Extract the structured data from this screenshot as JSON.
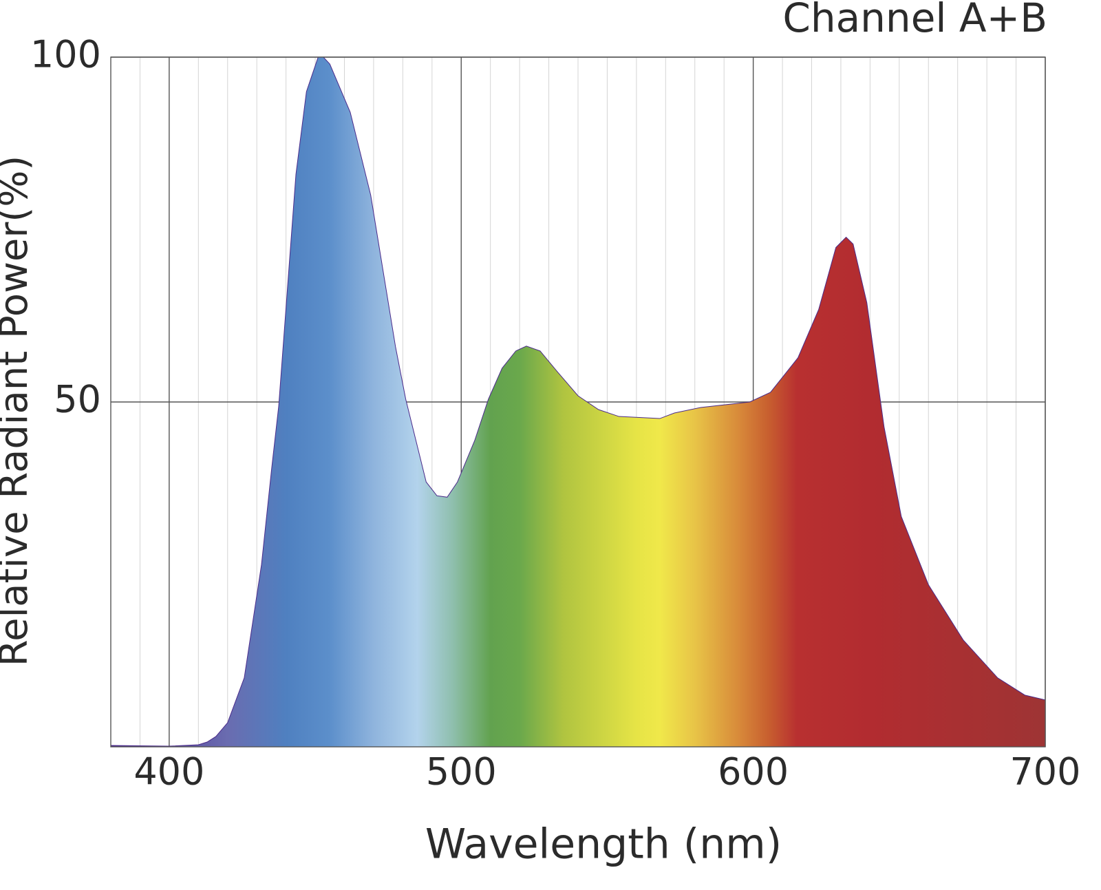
{
  "chart_data": {
    "type": "area",
    "title": "Channel A+B",
    "x_label": "Wavelength (nm)",
    "y_label": "Relative Radiant Power(%)",
    "x": [
      380,
      400,
      410,
      413,
      416,
      420,
      425.7,
      431.6,
      435.1,
      437.5,
      443.4,
      447,
      451,
      452.8,
      455,
      462,
      469,
      477.5,
      481,
      488,
      491.7,
      495.2,
      498.7,
      504.6,
      509.3,
      514,
      518.7,
      522.3,
      527,
      532.9,
      540,
      547,
      554,
      568,
      573,
      582,
      598.8,
      605.9,
      615.3,
      622.4,
      628.3,
      631.8,
      634.2,
      638.9,
      644.8,
      650.7,
      660,
      671.9,
      683.7,
      693,
      700
    ],
    "values": [
      0.2,
      0.1,
      0.3,
      0.7,
      1.5,
      3.5,
      10,
      26.4,
      40.4,
      49.4,
      83,
      95,
      100,
      100,
      99,
      92,
      80,
      58,
      50.4,
      38.4,
      36.4,
      36.2,
      38.4,
      44.4,
      50.4,
      54.9,
      57.4,
      58.1,
      57.4,
      54.4,
      50.9,
      48.9,
      47.9,
      47.6,
      48.4,
      49.2,
      50,
      51.4,
      56.4,
      63.4,
      72.4,
      73.9,
      72.9,
      64.4,
      46.4,
      33.4,
      23.5,
      15.5,
      10,
      7.5,
      6.8
    ],
    "fill_gradient": [
      {
        "x": 380,
        "color": "#4a2a8a"
      },
      {
        "x": 420,
        "color": "#6a6cb0"
      },
      {
        "x": 440,
        "color": "#4f80c0"
      },
      {
        "x": 455,
        "color": "#5c8fcb"
      },
      {
        "x": 470,
        "color": "#8fb4dd"
      },
      {
        "x": 485,
        "color": "#b3d3ec"
      },
      {
        "x": 497,
        "color": "#8fbfae"
      },
      {
        "x": 510,
        "color": "#62a24f"
      },
      {
        "x": 520,
        "color": "#6aa84c"
      },
      {
        "x": 535,
        "color": "#b0c440"
      },
      {
        "x": 560,
        "color": "#e6e446"
      },
      {
        "x": 568,
        "color": "#f0e84a"
      },
      {
        "x": 580,
        "color": "#e8c447"
      },
      {
        "x": 595,
        "color": "#d88a3a"
      },
      {
        "x": 605,
        "color": "#c8602f"
      },
      {
        "x": 615,
        "color": "#b83030"
      },
      {
        "x": 640,
        "color": "#b22c30"
      },
      {
        "x": 700,
        "color": "#9e3434"
      }
    ],
    "xlim": [
      380,
      700
    ],
    "ylim": [
      0,
      100
    ],
    "xticks": [
      400,
      500,
      600,
      700
    ],
    "yticks": [
      50,
      100
    ],
    "x_minor_step": 10,
    "grid": true
  }
}
